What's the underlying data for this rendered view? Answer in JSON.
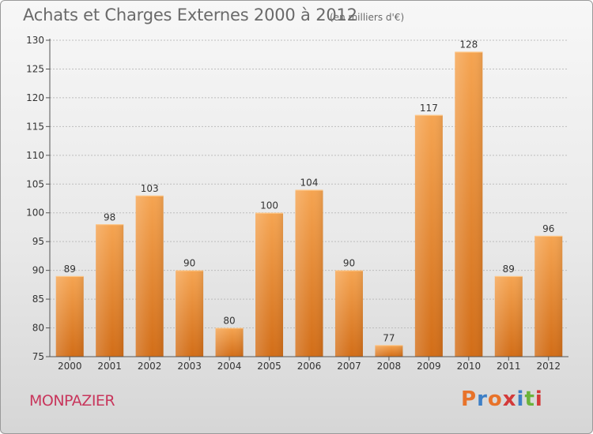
{
  "header": {
    "title": "Achats et Charges Externes 2000 à 2012",
    "subtitle": "(en milliers d'€)"
  },
  "footer": {
    "commune": "MONPAZIER",
    "brand": "Proxiti",
    "brand_colors": [
      "#e8732a",
      "#3d7fc6",
      "#e8732a",
      "#d33a3a",
      "#3d7fc6",
      "#6bb33a",
      "#d33a3a"
    ]
  },
  "colors": {
    "bar_top": "#f5a451",
    "bar_bottom": "#d26d17",
    "axis": "#555555",
    "grid": "#bdbdbd",
    "text": "#333333"
  },
  "chart_data": {
    "type": "bar",
    "title": "Achats et Charges Externes 2000 à 2012",
    "subtitle": "(en milliers d'€)",
    "categories": [
      "2000",
      "2001",
      "2002",
      "2003",
      "2004",
      "2005",
      "2006",
      "2007",
      "2008",
      "2009",
      "2010",
      "2011",
      "2012"
    ],
    "values": [
      89,
      98,
      103,
      90,
      80,
      100,
      104,
      90,
      77,
      117,
      128,
      89,
      96
    ],
    "ylim": [
      75,
      130
    ],
    "yticks": [
      75,
      80,
      85,
      90,
      95,
      100,
      105,
      110,
      115,
      120,
      125,
      130
    ],
    "grid": true,
    "data_labels": true
  }
}
